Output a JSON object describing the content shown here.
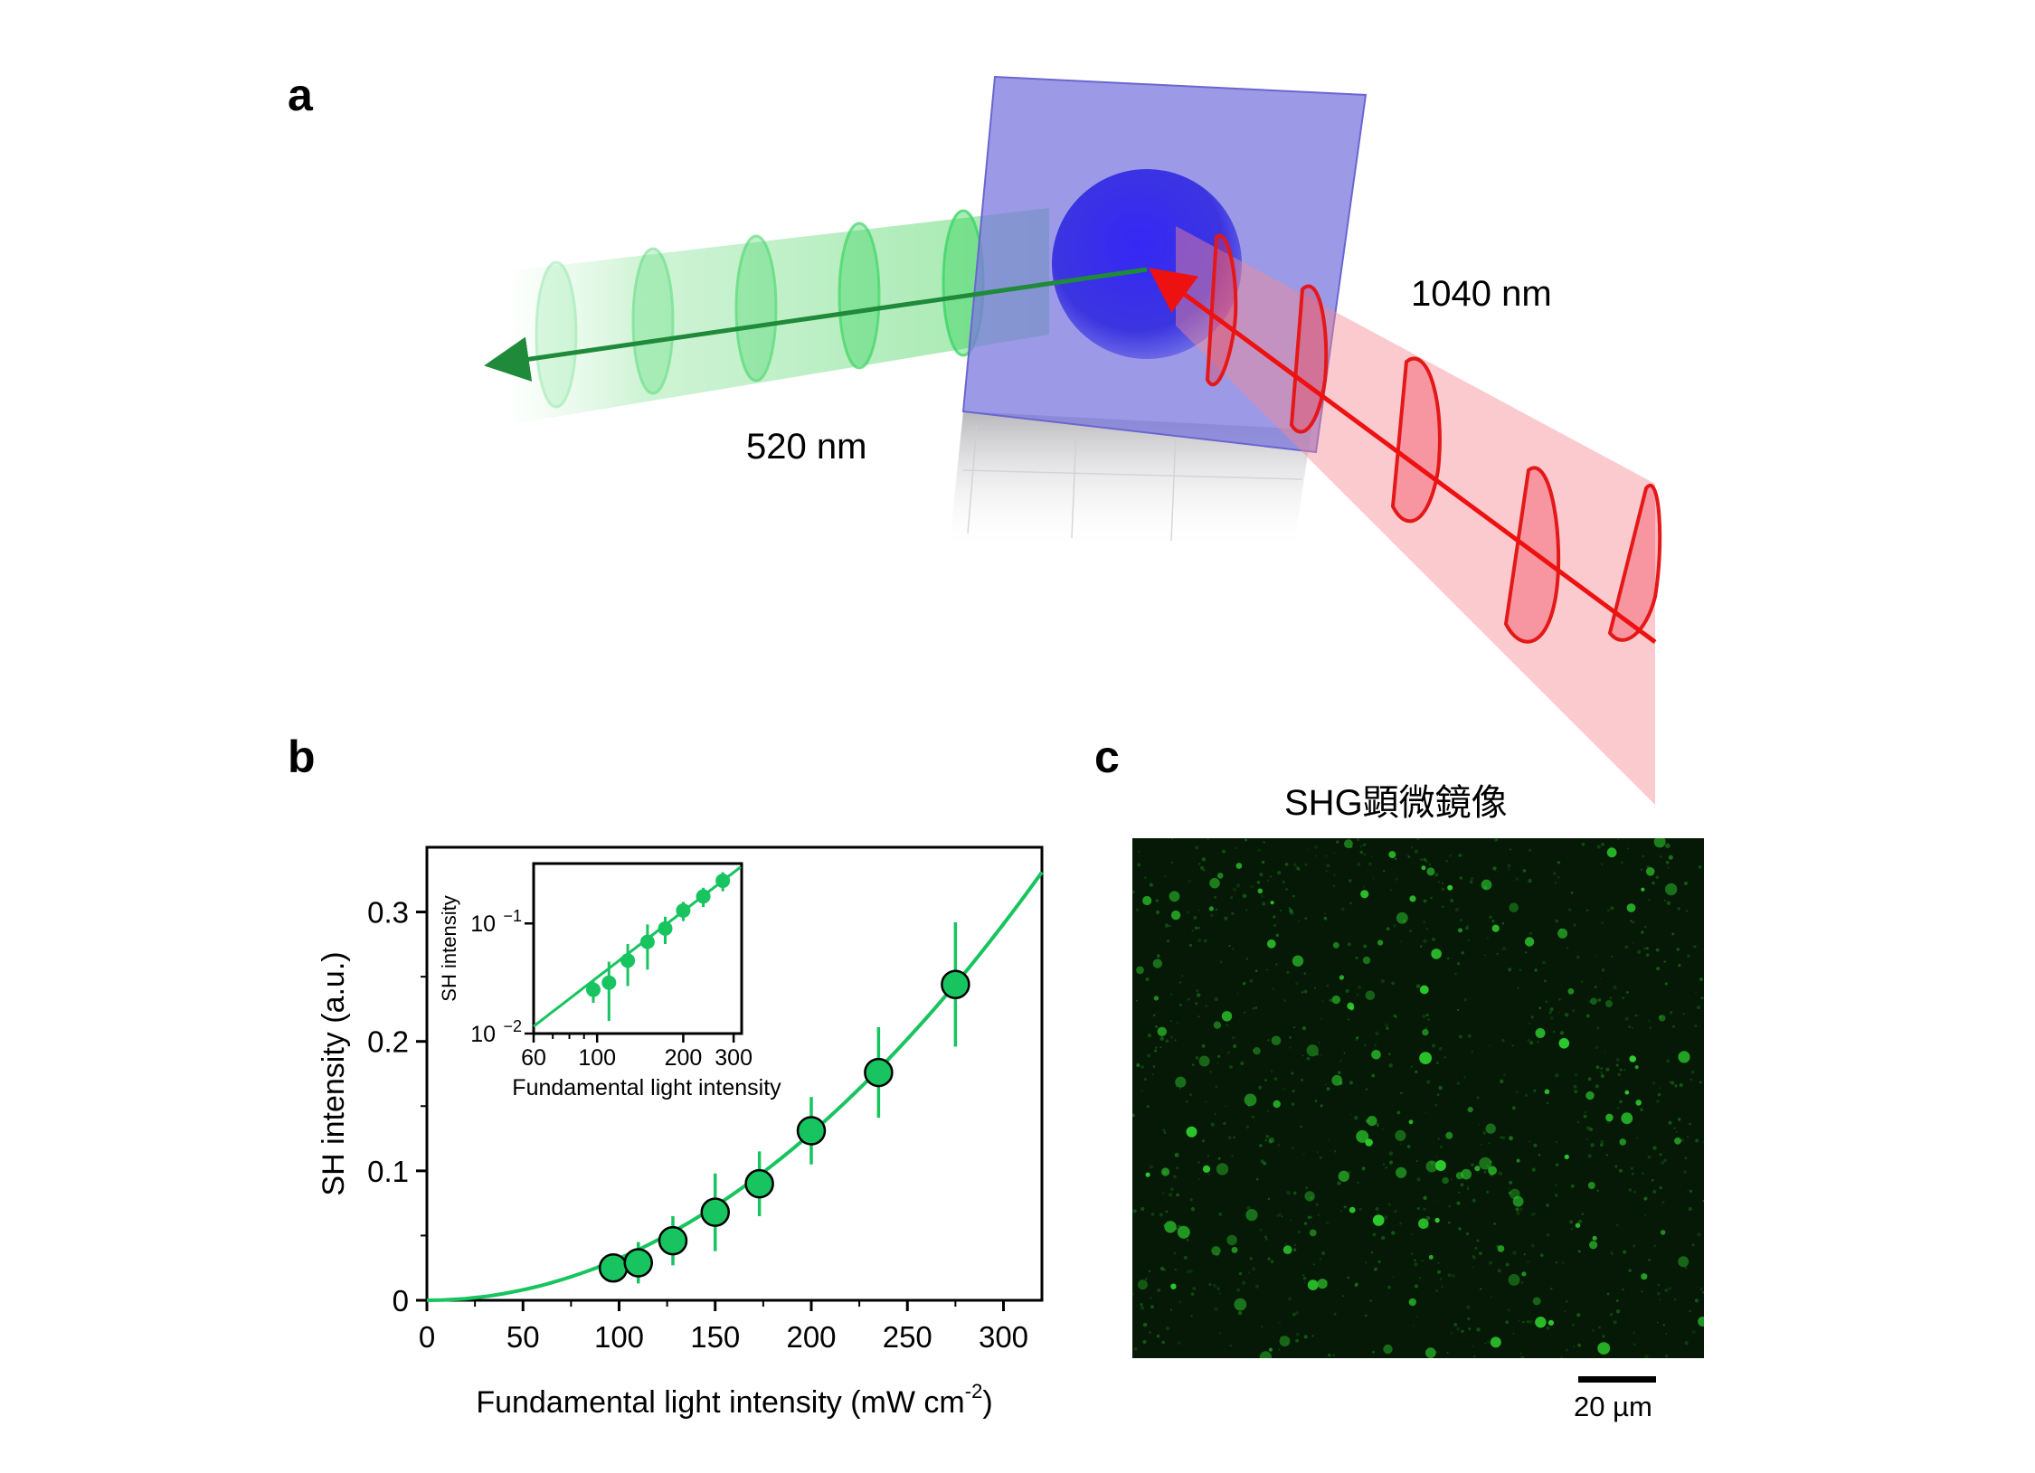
{
  "panels": {
    "a": {
      "label": "a",
      "input_beam_label": "1040 nm",
      "output_beam_label": "520 nm",
      "colors": {
        "input": "#ee1111",
        "output": "#1f8a3a",
        "sample": "#7b78dd",
        "particle": "#3b35e0"
      }
    },
    "b": {
      "label": "b",
      "chart_data": [
        {
          "type": "scatter",
          "title": "",
          "xlabel": "Fundamental light intensity (mW cm",
          "xlabel_sup": "-2",
          "xlabel_tail": ")",
          "ylabel": "SH intensity (a.u.)",
          "xlim": [
            0,
            320
          ],
          "ylim": [
            0,
            0.35
          ],
          "xticks": [
            "0",
            "50",
            "100",
            "150",
            "200",
            "250",
            "300"
          ],
          "yticks": [
            "0",
            "0.1",
            "0.2",
            "0.3"
          ],
          "color": "#17c45f",
          "x": [
            97,
            110,
            128,
            150,
            173,
            200,
            235,
            275
          ],
          "y": [
            0.025,
            0.029,
            0.046,
            0.068,
            0.09,
            0.131,
            0.176,
            0.244
          ],
          "yerr": [
            0.006,
            0.016,
            0.019,
            0.03,
            0.025,
            0.026,
            0.035,
            0.048
          ],
          "fit": {
            "type": "quadratic",
            "coefficient": 3.23e-06,
            "x_range": [
              0,
              320
            ]
          }
        },
        {
          "type": "scatter",
          "inset": true,
          "xscale": "log",
          "yscale": "log",
          "xlabel": "Fundamental light intensity",
          "ylabel": "SH intensity",
          "xlim": [
            60,
            320
          ],
          "ylim": [
            0.01,
            0.35
          ],
          "xticks": [
            "60",
            "100",
            "200",
            "300"
          ],
          "yticks_base": "10",
          "yticks_exp": [
            "−1",
            "−2"
          ],
          "color": "#17c45f",
          "x": [
            97,
            110,
            128,
            150,
            173,
            200,
            235,
            275
          ],
          "y": [
            0.025,
            0.029,
            0.046,
            0.068,
            0.09,
            0.131,
            0.176,
            0.244
          ],
          "yerr": [
            0.006,
            0.016,
            0.019,
            0.03,
            0.025,
            0.026,
            0.035,
            0.048
          ]
        }
      ]
    },
    "c": {
      "label": "c",
      "title": "SHG顕微鏡像",
      "scale_bar_label": "20 µm",
      "image_color": "#2fd52f"
    }
  }
}
